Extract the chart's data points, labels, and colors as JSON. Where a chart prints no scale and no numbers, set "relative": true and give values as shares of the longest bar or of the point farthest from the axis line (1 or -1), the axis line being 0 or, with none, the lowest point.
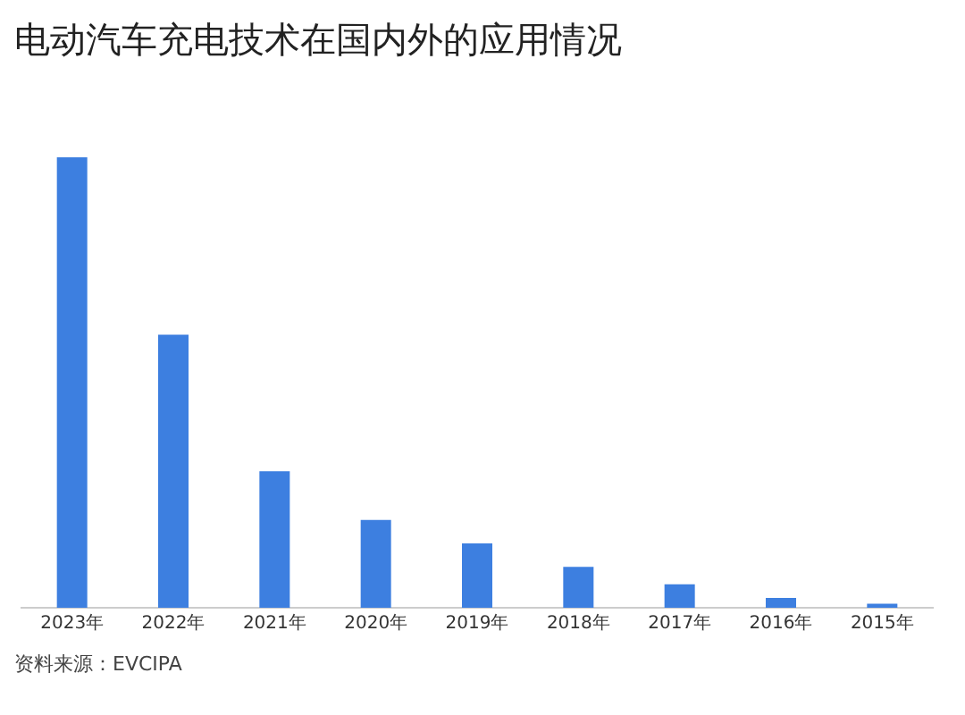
{
  "chart_data": {
    "type": "bar",
    "title": "电动汽车充电技术在国内外的应用情况",
    "categories": [
      "2023年",
      "2022年",
      "2021年",
      "2020年",
      "2019年",
      "2018年",
      "2017年",
      "2016年",
      "2015年"
    ],
    "values": [
      1,
      0.606,
      0.303,
      0.195,
      0.143,
      0.091,
      0.052,
      0.022,
      0.009
    ],
    "color": "#3d7fe0",
    "relative": true,
    "grid": false,
    "legend": false,
    "annotations": [
      "资料来源：EVCIPA"
    ]
  }
}
